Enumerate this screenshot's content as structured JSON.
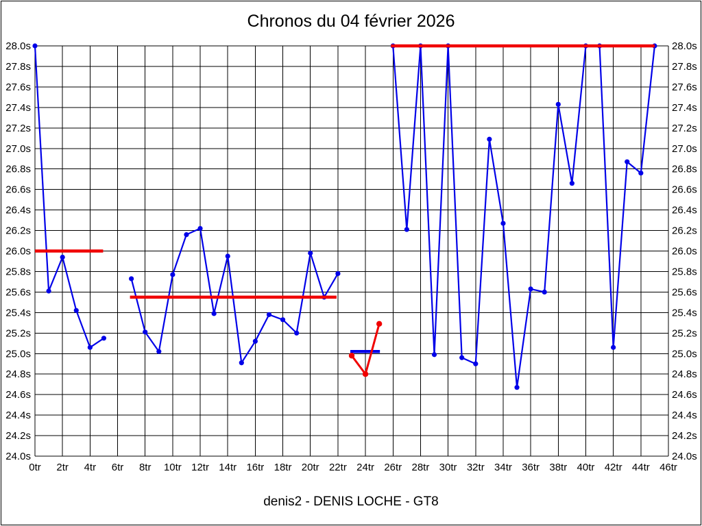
{
  "window": {
    "background": "#ffffff",
    "frame_border_color": "#000000"
  },
  "chart_data": {
    "type": "line",
    "title": "Chronos du 04 février 2026",
    "subtitle": "denis2 - DENIS LOCHE - GT8",
    "x_unit": "tr",
    "y_unit": "s",
    "xlim": [
      0,
      46
    ],
    "ylim": [
      24.0,
      28.0
    ],
    "grid": true,
    "grid_color": "#000000",
    "legend_position": "none",
    "x_ticks": [
      0,
      2,
      4,
      6,
      8,
      10,
      12,
      14,
      16,
      18,
      20,
      22,
      24,
      26,
      28,
      30,
      32,
      34,
      36,
      38,
      40,
      42,
      44,
      46
    ],
    "x_tick_labels": [
      "0tr",
      "2tr",
      "4tr",
      "6tr",
      "8tr",
      "10tr",
      "12tr",
      "14tr",
      "16tr",
      "18tr",
      "20tr",
      "22tr",
      "24tr",
      "26tr",
      "28tr",
      "30tr",
      "32tr",
      "34tr",
      "36tr",
      "38tr",
      "40tr",
      "42tr",
      "44tr",
      "46tr"
    ],
    "y_ticks": [
      28.0,
      27.8,
      27.6,
      27.4,
      27.2,
      27.0,
      26.8,
      26.6,
      26.4,
      26.2,
      26.0,
      25.8,
      25.6,
      25.4,
      25.2,
      25.0,
      24.8,
      24.6,
      24.4,
      24.2,
      24.0
    ],
    "y_tick_labels": [
      "28.0s",
      "27.8s",
      "27.6s",
      "27.4s",
      "27.2s",
      "27.0s",
      "26.8s",
      "26.6s",
      "26.4s",
      "26.2s",
      "26.0s",
      "25.8s",
      "25.6s",
      "25.4s",
      "25.2s",
      "25.0s",
      "24.8s",
      "24.6s",
      "24.4s",
      "24.2s",
      "24.0s"
    ],
    "series": [
      {
        "name": "lap-times-driver-blue",
        "color": "#0000e8",
        "marker": "circle",
        "segments": [
          [
            [
              0,
              28.0
            ],
            [
              1,
              25.61
            ],
            [
              2,
              25.94
            ],
            [
              3,
              25.42
            ],
            [
              4,
              25.06
            ],
            [
              5,
              25.15
            ]
          ],
          [
            [
              7,
              25.73
            ],
            [
              8,
              25.21
            ],
            [
              9,
              25.02
            ],
            [
              10,
              25.77
            ],
            [
              11,
              26.16
            ],
            [
              12,
              26.22
            ],
            [
              13,
              25.39
            ],
            [
              14,
              25.95
            ],
            [
              15,
              24.91
            ],
            [
              16,
              25.12
            ],
            [
              17,
              25.38
            ],
            [
              18,
              25.33
            ],
            [
              19,
              25.2
            ],
            [
              20,
              25.98
            ],
            [
              21,
              25.55
            ],
            [
              22,
              25.78
            ]
          ],
          [
            [
              26,
              28.0
            ],
            [
              27,
              26.21
            ],
            [
              28,
              28.0
            ],
            [
              29,
              24.99
            ],
            [
              30,
              28.0
            ],
            [
              31,
              24.96
            ],
            [
              32,
              24.9
            ],
            [
              33,
              27.09
            ],
            [
              34,
              26.27
            ],
            [
              35,
              24.67
            ],
            [
              36,
              25.63
            ],
            [
              37,
              25.6
            ],
            [
              38,
              27.43
            ],
            [
              39,
              26.66
            ],
            [
              40,
              28.0
            ],
            [
              41,
              28.0
            ],
            [
              42,
              25.06
            ],
            [
              43,
              26.87
            ],
            [
              44,
              26.76
            ],
            [
              45,
              28.0
            ]
          ]
        ]
      },
      {
        "name": "lap-times-relief-red",
        "color": "#f00000",
        "marker": "circle",
        "segments": [
          [
            [
              23,
              24.98
            ],
            [
              24,
              24.8
            ],
            [
              25,
              25.29
            ]
          ]
        ]
      }
    ],
    "reference_lines": [
      {
        "name": "stint1-average-line",
        "y": 26.0,
        "from_x": 0.0,
        "to_x": 4.95,
        "color": "#f00000"
      },
      {
        "name": "stint2-average-line",
        "y": 25.55,
        "from_x": 6.9,
        "to_x": 21.9,
        "color": "#f00000"
      },
      {
        "name": "relief-average-line",
        "y": 25.02,
        "from_x": 22.9,
        "to_x": 25.05,
        "color": "#0000e8"
      },
      {
        "name": "stint3-average-line",
        "y": 28.0,
        "from_x": 25.85,
        "to_x": 45.0,
        "color": "#f00000"
      }
    ]
  }
}
